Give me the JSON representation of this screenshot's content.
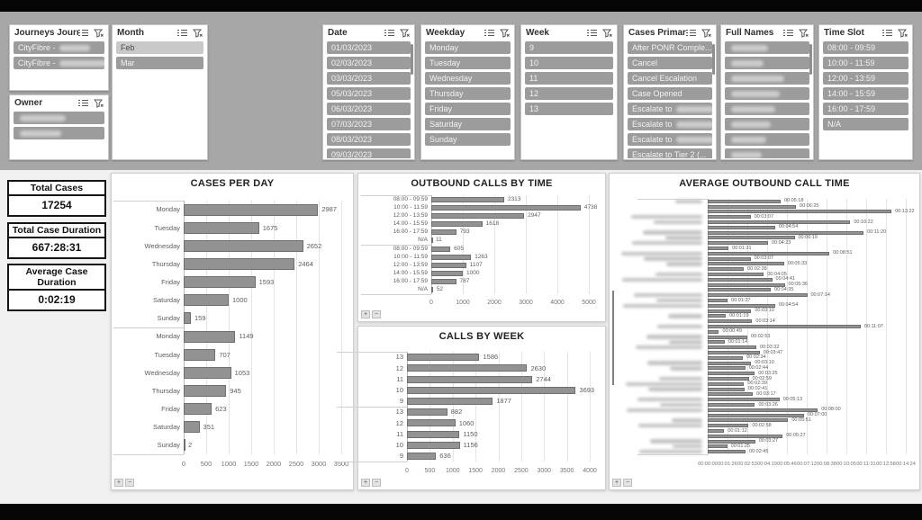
{
  "colors": {
    "band_gray": "#a7a7a7",
    "bar_fill": "#929292",
    "bar_stroke": "#6f6f6f",
    "selected_item": "#9c9c9c",
    "unselected_item": "#c9c9c9",
    "black_bar": "#050505"
  },
  "slicers": [
    {
      "id": "journeys",
      "title": "Journeys Journey ...",
      "items": [
        {
          "text": "CityFibre - ",
          "redact": true,
          "selected": true
        },
        {
          "text": "CityFibre - ",
          "redact": true,
          "selected": true
        }
      ],
      "scrollbar": false
    },
    {
      "id": "owner",
      "title": "Owner",
      "items": [
        {
          "text": "",
          "redact": true,
          "selected": true
        },
        {
          "text": "",
          "redact": true,
          "selected": true
        }
      ],
      "scrollbar": false
    },
    {
      "id": "month",
      "title": "Month",
      "items": [
        {
          "text": "Feb",
          "selected": false
        },
        {
          "text": "Mar",
          "selected": true
        }
      ],
      "scrollbar": false
    },
    {
      "id": "date",
      "title": "Date",
      "items": [
        {
          "text": "01/03/2023",
          "selected": true
        },
        {
          "text": "02/03/2023",
          "selected": true
        },
        {
          "text": "03/03/2023",
          "selected": true
        },
        {
          "text": "05/03/2023",
          "selected": true
        },
        {
          "text": "06/03/2023",
          "selected": true
        },
        {
          "text": "07/03/2023",
          "selected": true
        },
        {
          "text": "08/03/2023",
          "selected": true
        },
        {
          "text": "09/03/2023",
          "selected": true
        }
      ],
      "scrollbar": true
    },
    {
      "id": "weekday",
      "title": "Weekday",
      "items": [
        {
          "text": "Monday",
          "selected": true
        },
        {
          "text": "Tuesday",
          "selected": true
        },
        {
          "text": "Wednesday",
          "selected": true
        },
        {
          "text": "Thursday",
          "selected": true
        },
        {
          "text": "Friday",
          "selected": true
        },
        {
          "text": "Saturday",
          "selected": true
        },
        {
          "text": "Sunday",
          "selected": true
        }
      ],
      "scrollbar": false
    },
    {
      "id": "week",
      "title": "Week",
      "items": [
        {
          "text": "9",
          "selected": true
        },
        {
          "text": "10",
          "selected": true
        },
        {
          "text": "11",
          "selected": true
        },
        {
          "text": "12",
          "selected": true
        },
        {
          "text": "13",
          "selected": true
        }
      ],
      "scrollbar": false
    },
    {
      "id": "cases-primary",
      "title": "Cases Primary Iss...",
      "items": [
        {
          "text": "After PONR Comple...",
          "selected": true
        },
        {
          "text": "Cancel",
          "selected": true
        },
        {
          "text": "Cancel Escalation",
          "selected": true
        },
        {
          "text": "Case Opened",
          "selected": true
        },
        {
          "text": "Escalate to ",
          "redact": true,
          "selected": true
        },
        {
          "text": "Escalate to ",
          "redact": true,
          "selected": true
        },
        {
          "text": "Escalate to ",
          "redact": true,
          "selected": true
        },
        {
          "text": "Escalate to Tier 2 (...",
          "selected": true
        }
      ],
      "scrollbar": true
    },
    {
      "id": "full-names",
      "title": "Full Names",
      "items": [
        {
          "text": "",
          "redact": true,
          "selected": true
        },
        {
          "text": "",
          "redact": true,
          "selected": true
        },
        {
          "text": "",
          "redact": true,
          "selected": true
        },
        {
          "text": "",
          "redact": true,
          "selected": true
        },
        {
          "text": "",
          "redact": true,
          "selected": true
        },
        {
          "text": "",
          "redact": true,
          "selected": true
        },
        {
          "text": "",
          "redact": true,
          "selected": true
        },
        {
          "text": "",
          "redact": true,
          "selected": true
        }
      ],
      "scrollbar": true
    },
    {
      "id": "time-slot",
      "title": "Time Slot",
      "items": [
        {
          "text": "08:00 - 09:59",
          "selected": true
        },
        {
          "text": "10:00 - 11:59",
          "selected": true
        },
        {
          "text": "12:00 - 13:59",
          "selected": true
        },
        {
          "text": "14:00 - 15:59",
          "selected": true
        },
        {
          "text": "16:00 - 17:59",
          "selected": true
        },
        {
          "text": "N/A",
          "selected": true
        }
      ],
      "scrollbar": false
    }
  ],
  "kpis": [
    {
      "label": "Total Cases",
      "value": "17254"
    },
    {
      "label": "Total Case Duration",
      "value": "667:28:31"
    },
    {
      "label": "Average Case Duration",
      "value": "0:02:19"
    }
  ],
  "chart_data": [
    {
      "type": "bar",
      "orientation": "horizontal",
      "title": "CASES PER DAY",
      "xlim": [
        0,
        3500
      ],
      "x_ticks": [
        0,
        500,
        1000,
        1500,
        2000,
        2500,
        3000,
        3500
      ],
      "grid": true,
      "legend": false,
      "groups": [
        {
          "categories": [
            "Monday",
            "Tuesday",
            "Wednesday",
            "Thursday",
            "Friday",
            "Saturday",
            "Sunday"
          ],
          "values": [
            2987,
            1675,
            2652,
            2464,
            1593,
            1000,
            159
          ]
        },
        {
          "categories": [
            "Monday",
            "Tuesday",
            "Wednesday",
            "Thursday",
            "Friday",
            "Saturday",
            "Sunday"
          ],
          "values": [
            1149,
            707,
            1053,
            945,
            623,
            351,
            2
          ]
        }
      ]
    },
    {
      "type": "bar",
      "orientation": "horizontal",
      "title": "OUTBOUND CALLS BY TIME",
      "xlim": [
        0,
        5000
      ],
      "x_ticks": [
        0,
        1000,
        2000,
        3000,
        4000,
        5000
      ],
      "grid": true,
      "legend": false,
      "groups": [
        {
          "categories": [
            "08:00 - 09:59",
            "10:00 - 11:59",
            "12:00 - 13:59",
            "14:00 - 15:59",
            "16:00 - 17:59",
            "N/A"
          ],
          "values": [
            2313,
            4738,
            2947,
            1618,
            793,
            11
          ]
        },
        {
          "categories": [
            "08:00 - 09:59",
            "10:00 - 11:59",
            "12:00 - 13:59",
            "14:00 - 15:59",
            "16:00 - 17:59",
            "N/A"
          ],
          "values": [
            605,
            1263,
            1107,
            1000,
            787,
            52
          ]
        }
      ]
    },
    {
      "type": "bar",
      "orientation": "horizontal",
      "title": "CALLS BY WEEK",
      "xlim": [
        0,
        4000
      ],
      "x_ticks": [
        0,
        500,
        1000,
        1500,
        2000,
        2500,
        3000,
        3500,
        4000
      ],
      "grid": true,
      "legend": false,
      "groups": [
        {
          "categories": [
            "13",
            "12",
            "11",
            "10",
            "9"
          ],
          "values": [
            1586,
            2630,
            2744,
            3693,
            1877
          ]
        },
        {
          "categories": [
            "13",
            "12",
            "11",
            "10",
            "9"
          ],
          "values": [
            882,
            1060,
            1150,
            1156,
            636
          ]
        }
      ]
    },
    {
      "type": "bar",
      "orientation": "horizontal",
      "title": "AVERAGE OUTBOUND CALL TIME",
      "note": "agent names on category axis are redacted/blurred in source",
      "x_tick_labels": [
        "00:00:00",
        "00:01:26",
        "00:02:53",
        "00:04:19",
        "00:05:46",
        "00:07:12",
        "00:08:38",
        "00:10:05",
        "00:11:31",
        "00:12:58",
        "00:14:24"
      ],
      "xlim_seconds": [
        0,
        864
      ],
      "grid": true,
      "legend": false,
      "values_hms": [
        "00:05:18",
        "00:06:25",
        "00:13:22",
        "00:03:07",
        "00:10:22",
        "00:04:54",
        "00:11:20",
        "00:06:19",
        "00:04:23",
        "00:01:31",
        "00:08:51",
        "00:03:07",
        "00:05:33",
        "00:02:38",
        "00:04:05",
        "00:04:41",
        "00:05:36",
        "00:04:35",
        "00:07:14",
        "00:01:27",
        "00:04:54",
        "00:03:10",
        "00:01:19",
        "00:03:14",
        "00:11:07",
        "00:00:49",
        "00:02:53",
        "00:01:14",
        "00:03:32",
        "00:03:47",
        "00:02:34",
        "00:03:10",
        "00:02:44",
        "00:03:25",
        "00:02:59",
        "00:02:39",
        "00:02:41",
        "00:03:17",
        "00:05:13",
        "00:03:26",
        "00:08:00",
        "00:07:00",
        "00:05:51",
        "00:02:58",
        "00:01:12",
        "00:05:27",
        "00:03:27",
        "00:01:25",
        "00:02:45"
      ]
    }
  ],
  "chart_controls": {
    "zoom_in": "+",
    "zoom_out": "−"
  }
}
